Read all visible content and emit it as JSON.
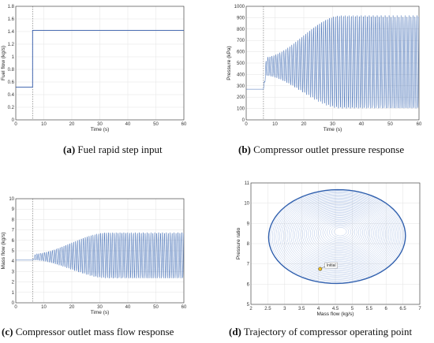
{
  "captions": {
    "a": {
      "letter": "(a)",
      "text": " Fuel rapid step input"
    },
    "b": {
      "letter": "(b)",
      "text": " Compressor outlet pressure response"
    },
    "c": {
      "letter": "(c)",
      "text": " Compressor outlet mass flow response"
    },
    "d": {
      "letter": "(d)",
      "text": " Trajectory of compressor operating point"
    }
  },
  "chart_data": [
    {
      "id": "a",
      "type": "line",
      "xlabel": "Time (s)",
      "ylabel": "Fuel flow (kg/s)",
      "xlim": [
        0,
        60
      ],
      "ylim": [
        0,
        1.8
      ],
      "xticks": [
        0,
        10,
        20,
        30,
        40,
        50,
        60
      ],
      "yticks": [
        0,
        0.2,
        0.4,
        0.6,
        0.8,
        1,
        1.2,
        1.4,
        1.6,
        1.8
      ],
      "grid": true,
      "step_time": 6,
      "series": [
        {
          "x": [
            0,
            6,
            6,
            60
          ],
          "y": [
            0.52,
            0.52,
            1.42,
            1.42
          ]
        }
      ]
    },
    {
      "id": "b",
      "type": "line",
      "xlabel": "Time (s)",
      "ylabel": "Pressure (kPa)",
      "xlim": [
        0,
        60
      ],
      "ylim": [
        0,
        1000
      ],
      "xticks": [
        0,
        10,
        20,
        30,
        40,
        50,
        60
      ],
      "yticks": [
        0,
        100,
        200,
        300,
        400,
        500,
        600,
        700,
        800,
        900,
        1000
      ],
      "grid": true,
      "step_time": 6,
      "oscillation": {
        "initial": 270,
        "center_start": 470,
        "center_end": 510,
        "amp_start": 80,
        "amp_end": 410,
        "growth_end_time": 33
      }
    },
    {
      "id": "c",
      "type": "line",
      "xlabel": "Time (s)",
      "ylabel": "Mass flow (kg/s)",
      "xlim": [
        0,
        60
      ],
      "ylim": [
        0,
        10
      ],
      "xticks": [
        0,
        10,
        20,
        30,
        40,
        50,
        60
      ],
      "yticks": [
        0,
        1,
        2,
        3,
        4,
        5,
        6,
        7,
        8,
        9,
        10
      ],
      "grid": true,
      "step_time": 6,
      "oscillation": {
        "initial": 4.1,
        "center_start": 4.4,
        "center_end": 4.55,
        "amp_start": 0.3,
        "amp_end": 2.2,
        "growth_end_time": 33
      }
    },
    {
      "id": "d",
      "type": "scatter",
      "xlabel": "Mass flow (kg/s)",
      "ylabel": "Pressure ratio",
      "xlim": [
        2,
        7
      ],
      "ylim": [
        5,
        11
      ],
      "xticks": [
        2,
        2.5,
        3,
        3.5,
        4,
        4.5,
        5,
        5.5,
        6,
        6.5,
        7
      ],
      "yticks": [
        5,
        6,
        7,
        8,
        9,
        10,
        11
      ],
      "grid": true,
      "initial_point": {
        "x": 4.05,
        "y": 6.75,
        "label": "Initial"
      },
      "limit_cycle": {
        "cx": 4.55,
        "cy": 8.35,
        "rx": 2.2,
        "ry": 2.5,
        "tilt_deg": 30
      },
      "inner_center": {
        "x": 4.65,
        "y": 8.6
      }
    }
  ]
}
